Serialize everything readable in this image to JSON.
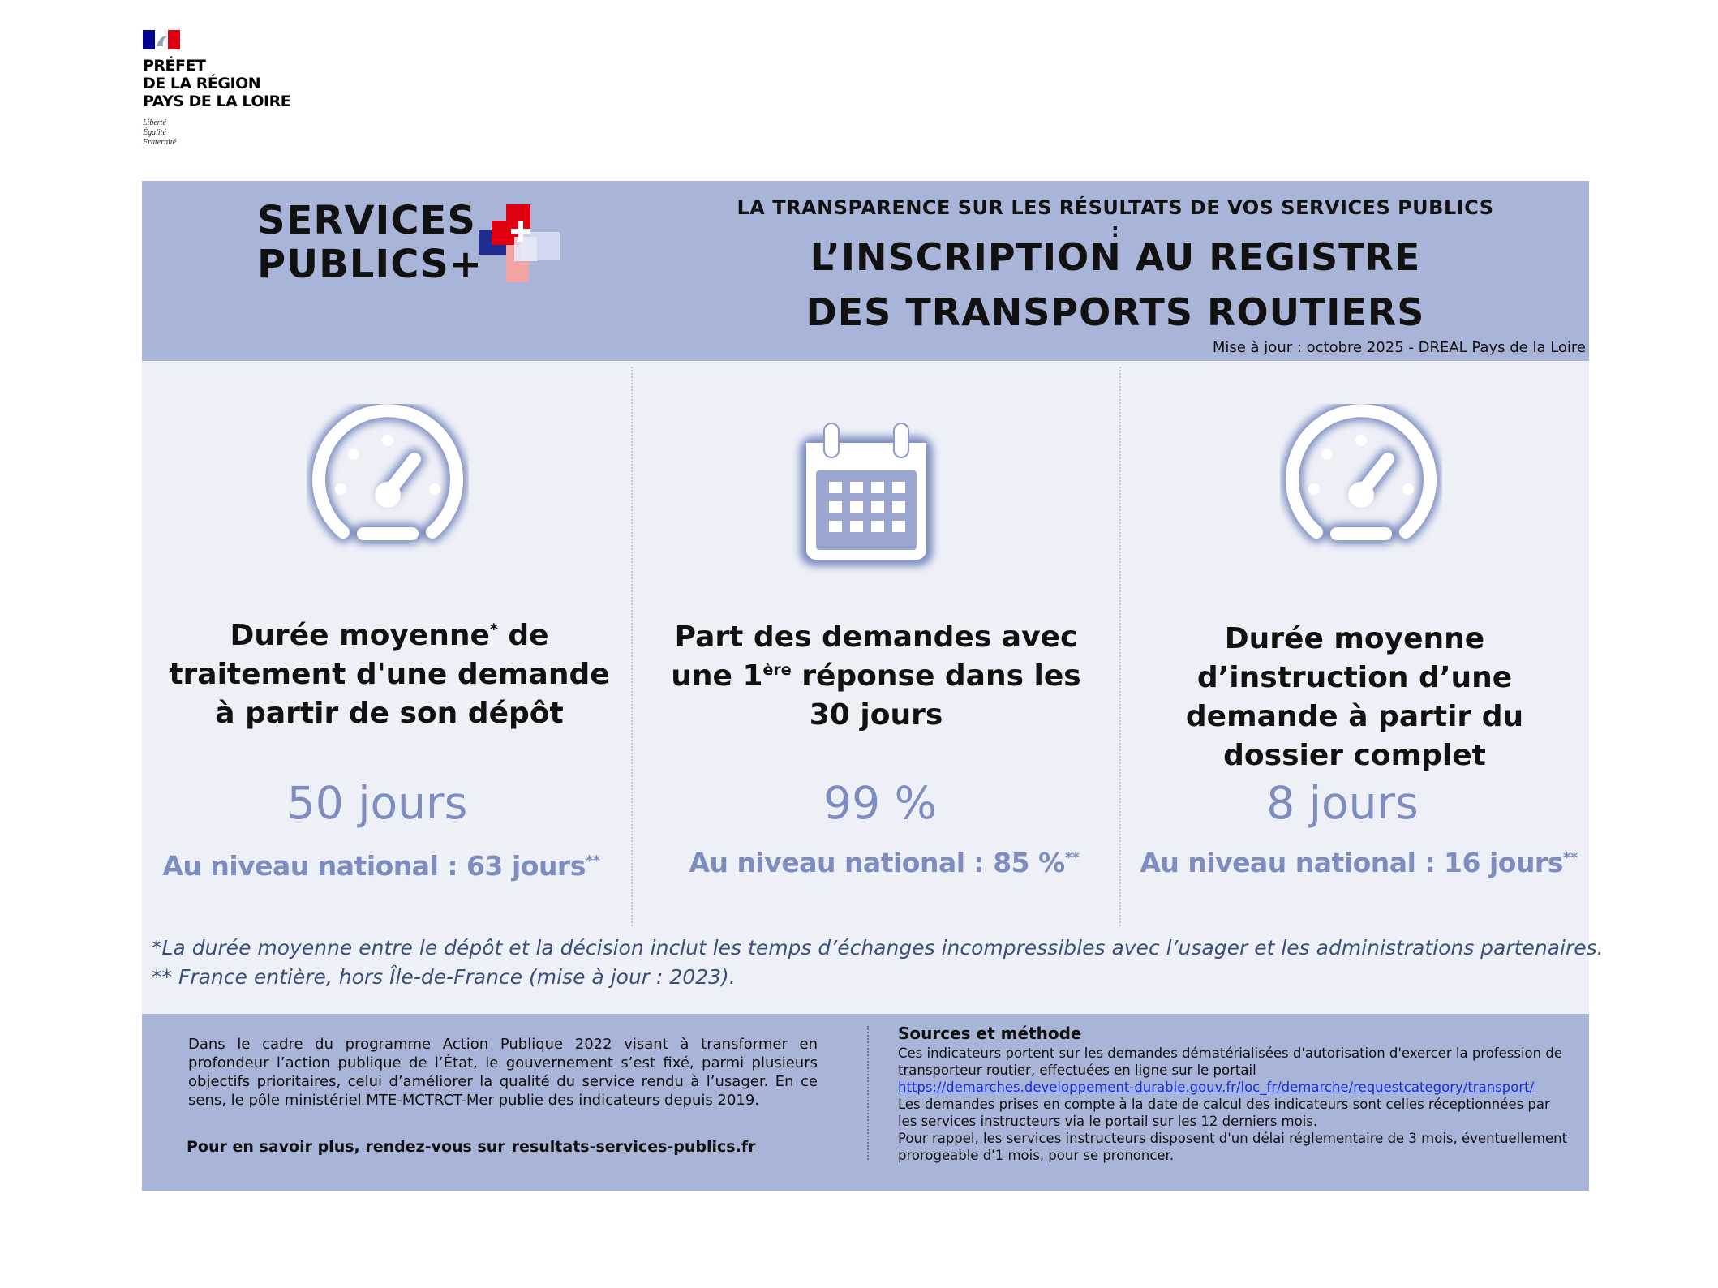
{
  "logo": {
    "flag_colors": [
      "#000091",
      "#ffffff",
      "#e1000f"
    ],
    "prefet_lines": [
      "PRÉFET",
      "DE LA RÉGION",
      "PAYS DE LA LOIRE"
    ],
    "devise_lines": [
      "Liberté",
      "Égalité",
      "Fraternité"
    ]
  },
  "header": {
    "brand_line1": "SERVICES",
    "brand_line2": "PUBLICS+",
    "kicker": "LA TRANSPARENCE SUR LES  RÉSULTATS DE VOS SERVICES PUBLICS :",
    "title_line1": "L’INSCRIPTION AU REGISTRE",
    "title_line2": "DES TRANSPORTS ROUTIERS",
    "update": "Mise à jour : octobre 2025 - DREAL Pays de la Loire",
    "background": "#a8b4d8"
  },
  "cards": [
    {
      "icon": "speedometer-icon",
      "title_a": "Durée moyenne",
      "title_sup": "*",
      "title_b": " de traitement d'une demande à partir de son dépôt",
      "value": "50 jours",
      "national_text": "Au niveau national : 63 jours",
      "national_sup": "**"
    },
    {
      "icon": "calendar-icon",
      "title_a": "Part des demandes avec une 1",
      "title_sup": "ère",
      "title_b": " réponse dans les 30 jours",
      "value": "99 %",
      "national_text": "Au niveau national : 85 %",
      "national_sup": "**"
    },
    {
      "icon": "speedometer-icon",
      "title_a": "Durée moyenne d’instruction d’une demande à partir du dossier complet",
      "title_sup": "",
      "title_b": "",
      "value": "8 jours",
      "national_text": "Au niveau national : 16 jours",
      "national_sup": "**"
    }
  ],
  "notes": {
    "note1": "*La durée moyenne entre le dépôt et la décision inclut les temps d’échanges incompressibles avec l’usager et les administrations partenaires.",
    "note2": "** France entière, hors Île-de-France (mise à jour : 2023)."
  },
  "footer": {
    "text": "Dans le cadre du programme Action Publique 2022 visant à transformer en profondeur l’action publique de l’État, le gouvernement s’est fixé, parmi plusieurs objectifs prioritaires, celui d’améliorer la qualité du service rendu à l’usager. En ce sens, le pôle ministériel MTE-MCTRCT-Mer publie des indicateurs depuis 2019.",
    "more_label": "Pour en savoir plus, rendez-vous sur",
    "more_link": "resultats-services-publics.fr",
    "sources_title": "Sources et méthode",
    "sources_p1": "Ces indicateurs portent sur les demandes dématérialisées d'autorisation d'exercer la profession de transporteur routier, effectuées en ligne sur le portail",
    "sources_url": "https://demarches.developpement-durable.gouv.fr/loc_fr/demarche/requestcategory/transport/",
    "sources_p2a": "Les demandes prises en compte à la date de calcul des indicateurs sont celles réceptionnées par les services instructeurs ",
    "sources_p2_link": "via le portail",
    "sources_p2b": " sur les 12 derniers mois.",
    "sources_p3": "Pour rappel, les services instructeurs disposent d'un délai réglementaire de 3 mois, éventuellement prorogeable d'1 mois, pour se prononcer."
  },
  "colors": {
    "band": "#a8b4d8",
    "panel": "#eef0f8",
    "accent": "#7d8dbf",
    "note_text": "#3b4f7a",
    "link": "#1a2fd6"
  }
}
